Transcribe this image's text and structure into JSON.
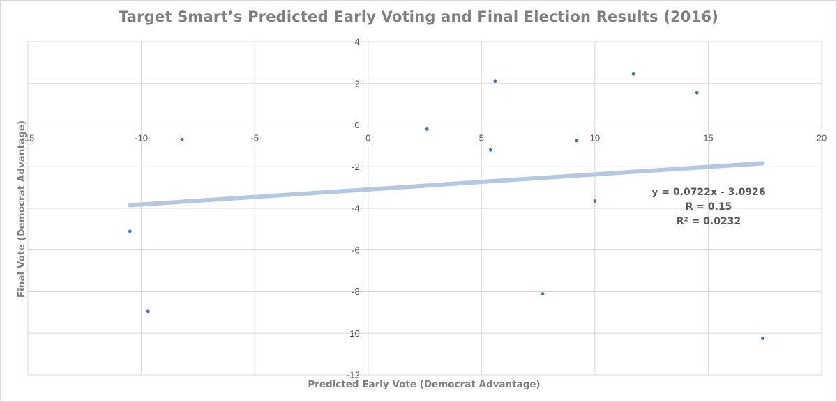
{
  "chart_data": {
    "type": "scatter",
    "title": "Target Smart’s Predicted Early Voting and Final Election Results (2016)",
    "xlabel": "Predicted Early Vote (Democrat Advantage)",
    "ylabel": "Final Vote (Democrat Advantage)",
    "xlim": [
      -15,
      20
    ],
    "ylim": [
      -12,
      4
    ],
    "x_ticks": [
      -15,
      -10,
      -5,
      0,
      5,
      10,
      15,
      20
    ],
    "y_ticks": [
      4,
      2,
      0,
      -2,
      -4,
      -6,
      -8,
      -10,
      -12
    ],
    "grid": true,
    "point_color": "#4472c4",
    "trendline_color": "#b4c7e7",
    "series": [
      {
        "points": [
          {
            "x": -10.5,
            "y": -5.1
          },
          {
            "x": -9.7,
            "y": -8.95
          },
          {
            "x": -8.2,
            "y": -0.7
          },
          {
            "x": 2.6,
            "y": -0.2
          },
          {
            "x": 5.4,
            "y": -1.2
          },
          {
            "x": 5.6,
            "y": 2.1
          },
          {
            "x": 7.7,
            "y": -8.1
          },
          {
            "x": 9.2,
            "y": -0.75
          },
          {
            "x": 10.0,
            "y": -3.65
          },
          {
            "x": 11.7,
            "y": 2.45
          },
          {
            "x": 14.5,
            "y": 1.55
          },
          {
            "x": 17.4,
            "y": -10.25
          }
        ]
      }
    ],
    "trendline": {
      "slope": 0.0722,
      "intercept": -3.0926,
      "x_range": [
        -10.5,
        17.4
      ],
      "equation": "y = 0.0722x - 3.0926",
      "r_label": "R = 0.15",
      "r2_label": "R² = 0.0232"
    }
  }
}
